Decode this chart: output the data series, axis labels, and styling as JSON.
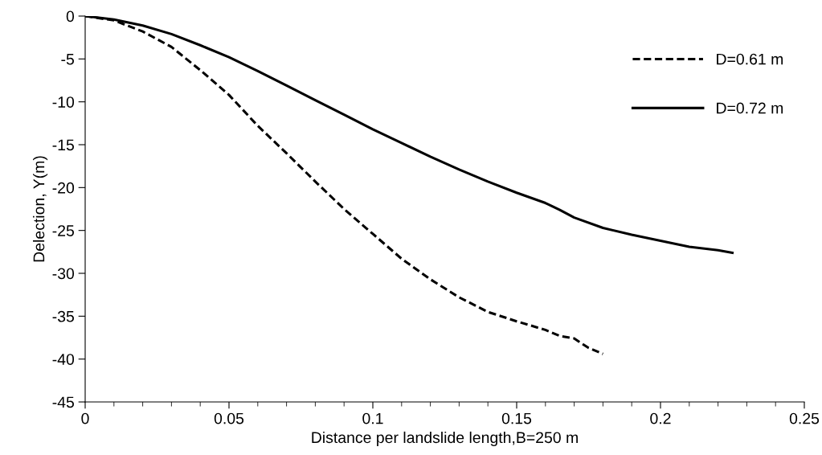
{
  "chart_data": {
    "type": "line",
    "xlabel": "Distance per landslide length,B=250 m",
    "ylabel": "Delection, Y(m)",
    "xlim": [
      0,
      0.25
    ],
    "xticks": [
      0,
      {
        "value": 0.01,
        "label": null
      },
      {
        "value": 0.02,
        "label": null
      },
      {
        "value": 0.03,
        "label": null
      },
      {
        "value": 0.04,
        "label": null
      },
      0.05,
      {
        "value": 0.06,
        "label": null
      },
      {
        "value": 0.07,
        "label": null
      },
      {
        "value": 0.08,
        "label": null
      },
      {
        "value": 0.09,
        "label": null
      },
      0.1,
      {
        "value": 0.11,
        "label": null
      },
      {
        "value": 0.12,
        "label": null
      },
      {
        "value": 0.13,
        "label": null
      },
      {
        "value": 0.14,
        "label": null
      },
      0.15,
      {
        "value": 0.16,
        "label": null
      },
      {
        "value": 0.17,
        "label": null
      },
      {
        "value": 0.18,
        "label": null
      },
      {
        "value": 0.19,
        "label": null
      },
      0.2,
      {
        "value": 0.21,
        "label": null
      },
      {
        "value": 0.22,
        "label": null
      },
      {
        "value": 0.23,
        "label": null
      },
      {
        "value": 0.24,
        "label": null
      },
      0.25
    ],
    "ylim": [
      -45,
      0
    ],
    "yticks": [
      0,
      -5,
      -10,
      -15,
      -20,
      -25,
      -30,
      -35,
      -40,
      -45
    ],
    "grid": false,
    "legend": "top right",
    "marker": "none",
    "series": [
      {
        "name": "D=0.61 m",
        "color": "#000000",
        "line_style": "dashed",
        "x": [
          0,
          0.01,
          0.02,
          0.03,
          0.04,
          0.05,
          0.06,
          0.07,
          0.08,
          0.09,
          0.1,
          0.11,
          0.12,
          0.13,
          0.14,
          0.15,
          0.16,
          0.165,
          0.17,
          0.175,
          0.18
        ],
        "values": [
          0,
          -0.5,
          -1.8,
          -3.6,
          -6.3,
          -9.2,
          -12.8,
          -16.0,
          -19.3,
          -22.5,
          -25.4,
          -28.3,
          -30.7,
          -32.8,
          -34.5,
          -35.6,
          -36.6,
          -37.3,
          -37.6,
          -38.7,
          -39.4
        ]
      },
      {
        "name": "D=0.72 m",
        "color": "#000000",
        "line_style": "solid",
        "x": [
          0,
          0.01,
          0.02,
          0.03,
          0.04,
          0.05,
          0.06,
          0.07,
          0.08,
          0.09,
          0.1,
          0.11,
          0.12,
          0.13,
          0.14,
          0.15,
          0.16,
          0.165,
          0.17,
          0.18,
          0.19,
          0.2,
          0.21,
          0.22,
          0.225
        ],
        "values": [
          0,
          -0.4,
          -1.1,
          -2.1,
          -3.4,
          -4.8,
          -6.4,
          -8.1,
          -9.8,
          -11.5,
          -13.2,
          -14.8,
          -16.4,
          -17.9,
          -19.3,
          -20.6,
          -21.8,
          -22.6,
          -23.5,
          -24.7,
          -25.5,
          -26.2,
          -26.9,
          -27.3,
          -27.6
        ]
      }
    ]
  }
}
